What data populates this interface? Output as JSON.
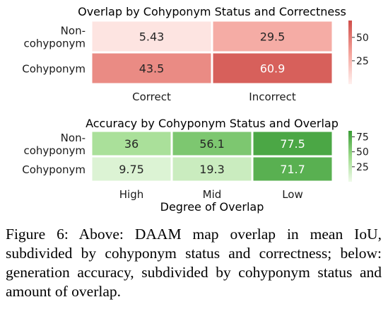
{
  "chart_data": [
    {
      "type": "heatmap",
      "title": "Overlap by Cohyponym Status and Correctness",
      "rows": [
        "Non-cohyponym",
        "Cohyponym"
      ],
      "columns": [
        "Correct",
        "Incorrect"
      ],
      "xlabel": "",
      "ylabel": "",
      "values": [
        [
          5.43,
          29.5
        ],
        [
          43.5,
          60.9
        ]
      ],
      "colorbar": {
        "ticks": [
          25,
          50
        ],
        "range": [
          0,
          68
        ],
        "colormap": "reds"
      }
    },
    {
      "type": "heatmap",
      "title": "Accuracy by Cohyponym Status and Overlap",
      "rows": [
        "Non-cohyponym",
        "Cohyponym"
      ],
      "columns": [
        "High",
        "Mid",
        "Low"
      ],
      "xlabel": "Degree of Overlap",
      "ylabel": "",
      "values": [
        [
          36,
          56.1,
          77.5
        ],
        [
          9.75,
          19.3,
          71.7
        ]
      ],
      "colorbar": {
        "ticks": [
          25,
          50,
          75
        ],
        "range": [
          0,
          85
        ],
        "colormap": "greens"
      }
    }
  ],
  "caption": "Figure 6: Above: DAAM map overlap in mean IoU, subdivided by cohyponym status and correctness; below: generation accuracy, subdivided by cohyponym status and amount of overlap."
}
